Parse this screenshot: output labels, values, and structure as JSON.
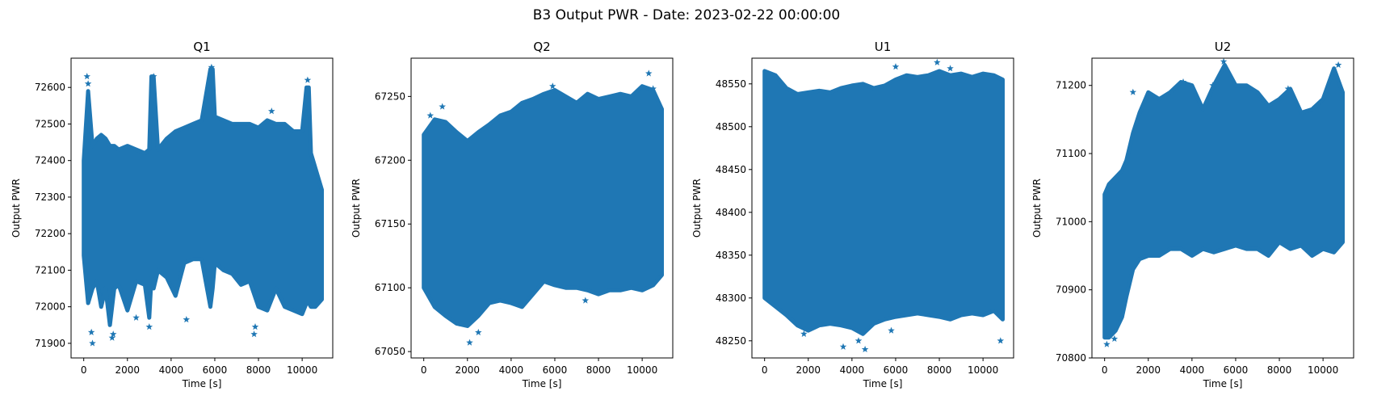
{
  "figure": {
    "title": "B3 Output PWR - Date: 2023-02-22 00:00:00"
  },
  "style": {
    "marker_color": "#1f77b4",
    "marker": "star"
  },
  "chart_data": [
    {
      "type": "scatter",
      "title": "Q1",
      "xlabel": "Time [s]",
      "ylabel": "Output PWR",
      "xlim": [
        -580,
        11400
      ],
      "ylim": [
        71860,
        72680
      ],
      "xticks": [
        0,
        2000,
        4000,
        6000,
        8000,
        10000
      ],
      "yticks": [
        71900,
        72000,
        72100,
        72200,
        72300,
        72400,
        72500,
        72600
      ],
      "envelope": {
        "x": [
          0,
          200,
          400,
          600,
          800,
          1000,
          1200,
          1400,
          1600,
          2000,
          2400,
          2800,
          3000,
          3100,
          3200,
          3400,
          3800,
          4200,
          4600,
          5000,
          5400,
          5800,
          5900,
          6000,
          6400,
          6800,
          7200,
          7600,
          8000,
          8400,
          8800,
          9200,
          9600,
          10000,
          10200,
          10300,
          10400,
          10600,
          10900
        ],
        "high": [
          72400,
          72590,
          72440,
          72460,
          72470,
          72460,
          72440,
          72440,
          72430,
          72440,
          72430,
          72420,
          72430,
          72630,
          72630,
          72430,
          72460,
          72480,
          72490,
          72500,
          72510,
          72650,
          72650,
          72520,
          72510,
          72500,
          72500,
          72500,
          72490,
          72510,
          72500,
          72500,
          72480,
          72480,
          72600,
          72600,
          72420,
          72380,
          72320
        ],
        "low": [
          72140,
          72010,
          72050,
          72070,
          72000,
          72050,
          71950,
          72050,
          72060,
          71990,
          72070,
          72060,
          71970,
          72080,
          72050,
          72100,
          72080,
          72030,
          72120,
          72130,
          72130,
          72000,
          72050,
          72120,
          72100,
          72090,
          72060,
          72070,
          72000,
          71990,
          72050,
          72000,
          71990,
          71980,
          72010,
          72010,
          72000,
          72000,
          72020
        ]
      },
      "outliers": [
        {
          "x": 150,
          "y": 72630
        },
        {
          "x": 200,
          "y": 72610
        },
        {
          "x": 3200,
          "y": 72630
        },
        {
          "x": 5850,
          "y": 72655
        },
        {
          "x": 10250,
          "y": 72620
        },
        {
          "x": 8600,
          "y": 72535
        },
        {
          "x": 400,
          "y": 71900
        },
        {
          "x": 350,
          "y": 71930
        },
        {
          "x": 1300,
          "y": 71915
        },
        {
          "x": 1350,
          "y": 71925
        },
        {
          "x": 3000,
          "y": 71945
        },
        {
          "x": 7800,
          "y": 71925
        },
        {
          "x": 7850,
          "y": 71945
        },
        {
          "x": 2400,
          "y": 71970
        },
        {
          "x": 4700,
          "y": 71965
        }
      ]
    },
    {
      "type": "scatter",
      "title": "Q2",
      "xlabel": "Time [s]",
      "ylabel": "Output PWR",
      "xlim": [
        -580,
        11400
      ],
      "ylim": [
        67045,
        67280
      ],
      "xticks": [
        0,
        2000,
        4000,
        6000,
        8000,
        10000
      ],
      "yticks": [
        67050,
        67100,
        67150,
        67200,
        67250
      ],
      "envelope": {
        "x": [
          0,
          500,
          1000,
          1500,
          2000,
          2500,
          3000,
          3500,
          4000,
          4500,
          5000,
          5500,
          6000,
          6500,
          7000,
          7500,
          8000,
          8500,
          9000,
          9500,
          10000,
          10500,
          10900
        ],
        "high": [
          67220,
          67232,
          67230,
          67222,
          67215,
          67222,
          67228,
          67235,
          67238,
          67245,
          67248,
          67252,
          67255,
          67250,
          67245,
          67252,
          67248,
          67250,
          67252,
          67250,
          67258,
          67255,
          67240
        ],
        "low": [
          67100,
          67085,
          67078,
          67072,
          67070,
          67078,
          67088,
          67090,
          67088,
          67085,
          67095,
          67105,
          67102,
          67100,
          67100,
          67098,
          67095,
          67098,
          67098,
          67100,
          67098,
          67102,
          67110
        ]
      },
      "outliers": [
        {
          "x": 2100,
          "y": 67057
        },
        {
          "x": 10300,
          "y": 67268
        },
        {
          "x": 5900,
          "y": 67258
        },
        {
          "x": 300,
          "y": 67235
        },
        {
          "x": 850,
          "y": 67242
        },
        {
          "x": 10500,
          "y": 67256
        },
        {
          "x": 2500,
          "y": 67065
        },
        {
          "x": 1700,
          "y": 67072
        },
        {
          "x": 7400,
          "y": 67090
        }
      ]
    },
    {
      "type": "scatter",
      "title": "U1",
      "xlabel": "Time [s]",
      "ylabel": "Output PWR",
      "xlim": [
        -580,
        11400
      ],
      "ylim": [
        48230,
        48580
      ],
      "xticks": [
        0,
        2000,
        4000,
        6000,
        8000,
        10000
      ],
      "yticks": [
        48250,
        48300,
        48350,
        48400,
        48450,
        48500,
        48550
      ],
      "envelope": {
        "x": [
          0,
          500,
          1000,
          1500,
          2000,
          2500,
          3000,
          3500,
          4000,
          4500,
          5000,
          5500,
          6000,
          6500,
          7000,
          7500,
          8000,
          8500,
          9000,
          9500,
          10000,
          10500,
          10900
        ],
        "high": [
          48565,
          48560,
          48545,
          48538,
          48540,
          48542,
          48540,
          48545,
          48548,
          48550,
          48545,
          48548,
          48555,
          48560,
          48558,
          48560,
          48565,
          48560,
          48562,
          48558,
          48562,
          48560,
          48555
        ],
        "low": [
          48300,
          48290,
          48280,
          48268,
          48262,
          48268,
          48270,
          48268,
          48265,
          48258,
          48270,
          48275,
          48278,
          48280,
          48282,
          48280,
          48278,
          48275,
          48280,
          48282,
          48280,
          48285,
          48275
        ]
      },
      "outliers": [
        {
          "x": 3600,
          "y": 48243
        },
        {
          "x": 4600,
          "y": 48240
        },
        {
          "x": 4300,
          "y": 48250
        },
        {
          "x": 10800,
          "y": 48250
        },
        {
          "x": 7900,
          "y": 48575
        },
        {
          "x": 6000,
          "y": 48570
        },
        {
          "x": 1800,
          "y": 48258
        },
        {
          "x": 5800,
          "y": 48262
        },
        {
          "x": 8500,
          "y": 48568
        }
      ]
    },
    {
      "type": "scatter",
      "title": "U2",
      "xlabel": "Time [s]",
      "ylabel": "Output PWR",
      "xlim": [
        -580,
        11400
      ],
      "ylim": [
        70800,
        71240
      ],
      "xticks": [
        0,
        2000,
        4000,
        6000,
        8000,
        10000
      ],
      "yticks": [
        70800,
        70900,
        71000,
        71100,
        71200
      ],
      "envelope": {
        "x": [
          0,
          200,
          500,
          800,
          1000,
          1300,
          1600,
          2000,
          2500,
          3000,
          3500,
          4000,
          4500,
          5000,
          5500,
          6000,
          6500,
          7000,
          7500,
          8000,
          8500,
          9000,
          9500,
          10000,
          10500,
          10900
        ],
        "high": [
          71040,
          71055,
          71065,
          71075,
          71090,
          71130,
          71160,
          71190,
          71180,
          71190,
          71205,
          71200,
          71165,
          71200,
          71230,
          71200,
          71200,
          71190,
          71170,
          71180,
          71195,
          71160,
          71165,
          71180,
          71225,
          71190
        ],
        "low": [
          70830,
          70830,
          70840,
          70860,
          70890,
          70930,
          70945,
          70950,
          70950,
          70960,
          70960,
          70950,
          70960,
          70955,
          70960,
          70965,
          70960,
          70960,
          70950,
          70970,
          70960,
          70965,
          70950,
          70960,
          70955,
          70970
        ]
      },
      "outliers": [
        {
          "x": 5450,
          "y": 71235
        },
        {
          "x": 10700,
          "y": 71230
        },
        {
          "x": 3600,
          "y": 71205
        },
        {
          "x": 1300,
          "y": 71190
        },
        {
          "x": 100,
          "y": 70820
        },
        {
          "x": 450,
          "y": 70828
        },
        {
          "x": 4950,
          "y": 71200
        },
        {
          "x": 8400,
          "y": 71195
        }
      ]
    }
  ]
}
